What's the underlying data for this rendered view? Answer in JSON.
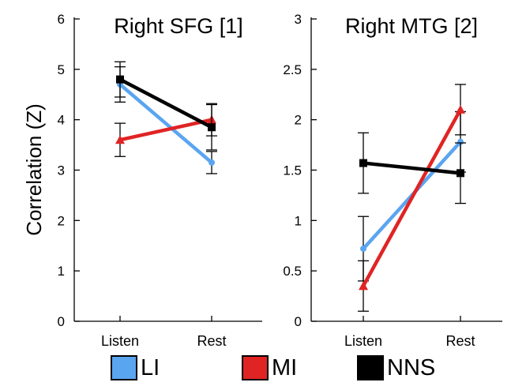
{
  "ylabel": "Correlation (Z)",
  "colors": {
    "LI": "#5aa5f0",
    "MI": "#e02424",
    "NNS": "#000000"
  },
  "legend": [
    {
      "name": "LI",
      "color": "#5aa5f0"
    },
    {
      "name": "MI",
      "color": "#e02424"
    },
    {
      "name": "NNS",
      "color": "#000000"
    }
  ],
  "chart_data": [
    {
      "type": "line",
      "title": "Right SFG [1]",
      "xlabel": "",
      "ylabel": "Correlation (Z)",
      "categories": [
        "Listen",
        "Rest"
      ],
      "ylim": [
        0,
        6
      ],
      "yticks": [
        "0",
        "1",
        "2",
        "3",
        "4",
        "5",
        "6"
      ],
      "series": [
        {
          "name": "LI",
          "marker": "circle",
          "values": [
            4.7,
            3.15
          ],
          "errors": [
            0.35,
            0.22
          ]
        },
        {
          "name": "MI",
          "marker": "triangle",
          "values": [
            3.6,
            4.0
          ],
          "errors": [
            0.33,
            0.32
          ]
        },
        {
          "name": "NNS",
          "marker": "square",
          "values": [
            4.8,
            3.85
          ],
          "errors": [
            0.35,
            0.45
          ]
        }
      ]
    },
    {
      "type": "line",
      "title": "Right MTG [2]",
      "xlabel": "",
      "ylabel": "",
      "categories": [
        "Listen",
        "Rest"
      ],
      "ylim": [
        0,
        3
      ],
      "yticks": [
        "0",
        "0.5",
        "1",
        "1.5",
        "2",
        "2.5",
        "3"
      ],
      "series": [
        {
          "name": "LI",
          "marker": "circle",
          "values": [
            0.72,
            1.78
          ],
          "errors": [
            0.32,
            0.3
          ]
        },
        {
          "name": "MI",
          "marker": "triangle",
          "values": [
            0.35,
            2.1
          ],
          "errors": [
            0.25,
            0.25
          ]
        },
        {
          "name": "NNS",
          "marker": "square",
          "values": [
            1.57,
            1.47
          ],
          "errors": [
            0.3,
            0.3
          ]
        }
      ]
    }
  ]
}
